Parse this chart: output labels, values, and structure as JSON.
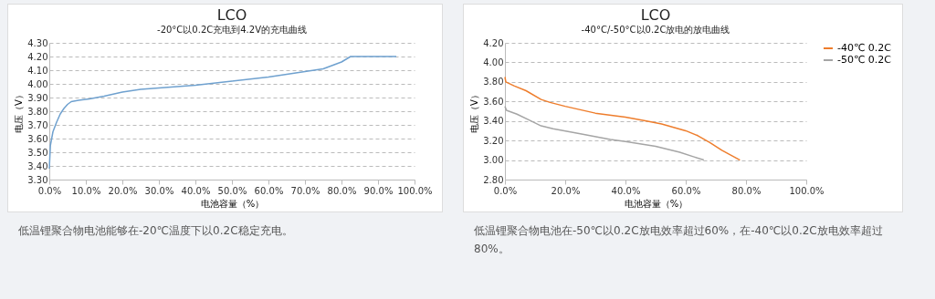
{
  "chart_data": [
    {
      "type": "line",
      "title": "LCO",
      "subtitle": "-20°C以0.2C充电到4.2V的充电曲线",
      "xlabel": "电池容量（%）",
      "ylabel": "电压（V）",
      "grid": "y",
      "legend": false,
      "xlim": [
        0,
        100
      ],
      "xticks": [
        {
          "value": 0,
          "label": "0.0%"
        },
        {
          "value": 10,
          "label": "10.0%"
        },
        {
          "value": 20,
          "label": "20.0%"
        },
        {
          "value": 30,
          "label": "30.0%"
        },
        {
          "value": 40,
          "label": "40.0%"
        },
        {
          "value": 50,
          "label": "50.0%"
        },
        {
          "value": 60,
          "label": "60.0%"
        },
        {
          "value": 70,
          "label": "70.0%"
        },
        {
          "value": 80,
          "label": "80.0%"
        },
        {
          "value": 90,
          "label": "90.0%"
        },
        {
          "value": 100,
          "label": "100.0%"
        }
      ],
      "ylim": [
        3.3,
        4.3
      ],
      "yticks": [
        {
          "value": 3.3,
          "label": "3.30"
        },
        {
          "value": 3.4,
          "label": "3.40"
        },
        {
          "value": 3.5,
          "label": "3.50"
        },
        {
          "value": 3.6,
          "label": "3.60"
        },
        {
          "value": 3.7,
          "label": "3.70"
        },
        {
          "value": 3.8,
          "label": "3.80"
        },
        {
          "value": 3.9,
          "label": "3.90"
        },
        {
          "value": 4.0,
          "label": "4.00"
        },
        {
          "value": 4.1,
          "label": "4.10"
        },
        {
          "value": 4.2,
          "label": "4.20"
        },
        {
          "value": 4.3,
          "label": "4.30"
        }
      ],
      "series": [
        {
          "color": "#6fa1cf",
          "x": [
            0,
            0.3,
            1,
            2,
            3,
            4,
            5,
            6,
            8,
            11,
            15,
            20,
            25,
            30,
            40,
            50,
            60,
            70,
            75,
            78,
            80,
            82.5,
            95
          ],
          "values": [
            3.38,
            3.55,
            3.65,
            3.72,
            3.78,
            3.82,
            3.85,
            3.87,
            3.88,
            3.89,
            3.91,
            3.94,
            3.96,
            3.97,
            3.99,
            4.02,
            4.05,
            4.09,
            4.11,
            4.14,
            4.16,
            4.2,
            4.2
          ]
        }
      ],
      "annotations": [
        "低温锂聚合物电池能够在-20℃温度下以0.2C稳定充电。"
      ]
    },
    {
      "type": "line",
      "title": "LCO",
      "subtitle": "-40°C/-50°C以0.2C放电的放电曲线",
      "xlabel": "电池容量（%）",
      "ylabel": "电压（V）",
      "grid": "y",
      "legend": "right",
      "xlim": [
        0,
        100
      ],
      "xticks": [
        {
          "value": 0,
          "label": "0.0%"
        },
        {
          "value": 20,
          "label": "20.0%"
        },
        {
          "value": 40,
          "label": "40.0%"
        },
        {
          "value": 60,
          "label": "60.0%"
        },
        {
          "value": 80,
          "label": "80.0%"
        },
        {
          "value": 100,
          "label": "100.0%"
        }
      ],
      "ylim": [
        2.8,
        4.2
      ],
      "yticks": [
        {
          "value": 2.8,
          "label": "2.80"
        },
        {
          "value": 3.0,
          "label": "3.00"
        },
        {
          "value": 3.2,
          "label": "3.20"
        },
        {
          "value": 3.4,
          "label": "3.40"
        },
        {
          "value": 3.6,
          "label": "3.60"
        },
        {
          "value": 3.8,
          "label": "3.80"
        },
        {
          "value": 4.0,
          "label": "4.00"
        },
        {
          "value": 4.2,
          "label": "4.20"
        }
      ],
      "series": [
        {
          "name": "-40℃ 0.2C",
          "color": "#ee7d2c",
          "x": [
            0,
            0.3,
            3,
            7,
            12,
            15,
            20,
            30,
            40,
            47,
            52,
            60,
            64,
            68,
            72,
            78
          ],
          "values": [
            3.85,
            3.8,
            3.76,
            3.71,
            3.62,
            3.59,
            3.55,
            3.48,
            3.44,
            3.4,
            3.37,
            3.3,
            3.25,
            3.18,
            3.1,
            3.0
          ]
        },
        {
          "name": "-50℃ 0.2C",
          "color": "#a5a5a5",
          "x": [
            0,
            0.5,
            4,
            8,
            12,
            16,
            25,
            35,
            40,
            50,
            58,
            63,
            66
          ],
          "values": [
            3.55,
            3.51,
            3.47,
            3.41,
            3.35,
            3.32,
            3.27,
            3.21,
            3.19,
            3.14,
            3.08,
            3.03,
            3.0
          ]
        }
      ],
      "annotations": [
        "低温锂聚合物电池在-50℃以0.2C放电效率超过60%，在-40℃以0.2C放电效率超过80%。"
      ]
    }
  ]
}
